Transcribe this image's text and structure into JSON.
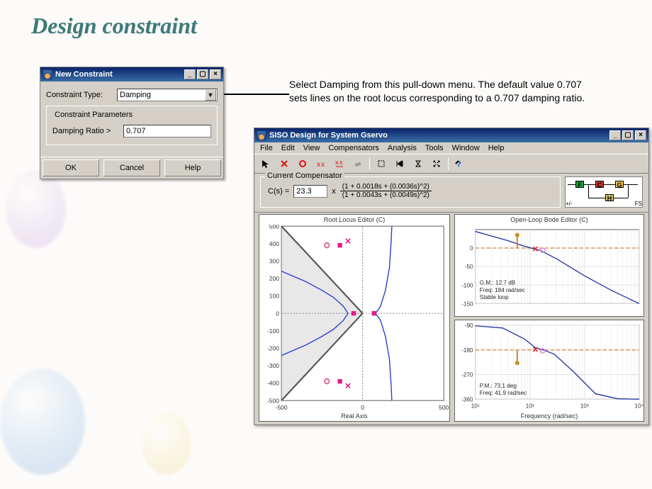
{
  "slide": {
    "title": "Design constraint"
  },
  "annotation": "Select Damping from this pull-down menu. The default value 0.707 sets lines on the root locus corresponding to a 0.707 damping ratio.",
  "constraint_dialog": {
    "title": "New Constraint",
    "type_label": "Constraint Type:",
    "type_value": "Damping",
    "params_group": "Constraint Parameters",
    "ratio_label": "Damping Ratio  >",
    "ratio_value": "0.707",
    "ok": "OK",
    "cancel": "Cancel",
    "help": "Help"
  },
  "siso": {
    "title": "SISO Design for System Gservo",
    "menus": [
      "File",
      "Edit",
      "View",
      "Compensators",
      "Analysis",
      "Tools",
      "Window",
      "Help"
    ],
    "toolbar_icons": [
      "pointer",
      "delete-x",
      "add-circle",
      "xx",
      "xx-bar",
      "eraser",
      "sep",
      "crop",
      "skip",
      "hourglass",
      "expand",
      "sep",
      "help"
    ],
    "comp": {
      "group": "Current Compensator",
      "lhs": "C(s) =",
      "gain": "23.3",
      "times": "x",
      "num": "(1 + 0.0018s + (0.0036s)^2)",
      "den": "(1 + 0.0043s + (0.0049s)^2)"
    },
    "block_diag": {
      "f": "F",
      "c": "C",
      "g": "G",
      "h": "H",
      "pm": "+/-",
      "fs": "FS",
      "colors": {
        "f": "#19a33a",
        "c": "#c0392b",
        "g": "#e8c24b",
        "h": "#d7c36f"
      }
    },
    "root_locus": {
      "title": "Root Locus Editor (C)",
      "xlabel": "Real Axis",
      "xlim": [
        -500,
        500
      ],
      "ylim": [
        -500,
        500
      ],
      "xticks": [
        -500,
        0,
        500
      ],
      "yticks": [
        -500,
        -400,
        -300,
        -200,
        -100,
        0,
        100,
        200,
        300,
        400,
        500
      ],
      "grid_color": "#e3e3e3",
      "diag_fill": "#bcbcbc",
      "locus_color": "#2a3fce",
      "locus_curves": [
        [
          [
            -500,
            242
          ],
          [
            -350,
            182
          ],
          [
            -250,
            132
          ],
          [
            -180,
            92
          ],
          [
            -120,
            42
          ],
          [
            -90,
            0
          ]
        ],
        [
          [
            -500,
            -242
          ],
          [
            -350,
            -182
          ],
          [
            -250,
            -132
          ],
          [
            -180,
            -92
          ],
          [
            -120,
            -42
          ],
          [
            -90,
            0
          ]
        ],
        [
          [
            80,
            0
          ],
          [
            110,
            40
          ],
          [
            140,
            130
          ],
          [
            165,
            260
          ],
          [
            175,
            400
          ],
          [
            180,
            500
          ]
        ],
        [
          [
            80,
            0
          ],
          [
            110,
            -40
          ],
          [
            140,
            -130
          ],
          [
            165,
            -260
          ],
          [
            175,
            -400
          ],
          [
            180,
            -500
          ]
        ]
      ],
      "poles": [
        [
          -140,
          390
        ],
        [
          -55,
          0
        ],
        [
          70,
          0
        ],
        [
          -140,
          -390
        ]
      ],
      "zeros": [
        [
          -220,
          390
        ],
        [
          -220,
          -390
        ]
      ],
      "cl_poles": [
        [
          -90,
          415
        ],
        [
          -90,
          -415
        ]
      ],
      "pole_color": "#e41b8a",
      "zero_color": "#d94d8a",
      "zero_inner": "#ffffff"
    },
    "bode": {
      "title": "Open-Loop Bode Editor (C)",
      "xlabel": "Frequency (rad/sec)",
      "xlim_log": [
        1,
        4
      ],
      "xticks_labels": [
        "10¹",
        "10²",
        "10³",
        "10⁴"
      ],
      "grid_color": "#e3e3e3",
      "curve_color": "#24349f",
      "gm_line_color": "#d5813a",
      "marker_x_color": "#d62f2f",
      "marker_o_color": "#e08bd7",
      "mag": {
        "ylim": [
          -150,
          50
        ],
        "yticks": [
          -150,
          -100,
          -50,
          0
        ],
        "info": [
          "G.M.: 12.7 dB",
          "Freq: 184 rad/sec",
          "Stable loop"
        ],
        "curve": [
          [
            1,
            45
          ],
          [
            1.6,
            20
          ],
          [
            1.9,
            5
          ],
          [
            2.2,
            -7
          ],
          [
            2.5,
            -30
          ],
          [
            3.0,
            -75
          ],
          [
            3.5,
            -115
          ],
          [
            4,
            -150
          ]
        ]
      },
      "phase": {
        "ylim": [
          -360,
          -90
        ],
        "yticks": [
          -360,
          -270,
          -180,
          -90
        ],
        "info": [
          "P.M.: 73.1 deg",
          "Freq: 41.9 rad/sec"
        ],
        "curve": [
          [
            1,
            -92
          ],
          [
            1.5,
            -100
          ],
          [
            1.9,
            -140
          ],
          [
            2.1,
            -172
          ],
          [
            2.25,
            -180
          ],
          [
            2.45,
            -196
          ],
          [
            2.8,
            -260
          ],
          [
            3.2,
            -340
          ],
          [
            3.6,
            -358
          ],
          [
            4,
            -360
          ]
        ]
      }
    }
  },
  "colors": {
    "win_bg": "#d4d0c8",
    "title_grad_a": "#0a246a",
    "title_grad_b": "#3a6ea5"
  }
}
